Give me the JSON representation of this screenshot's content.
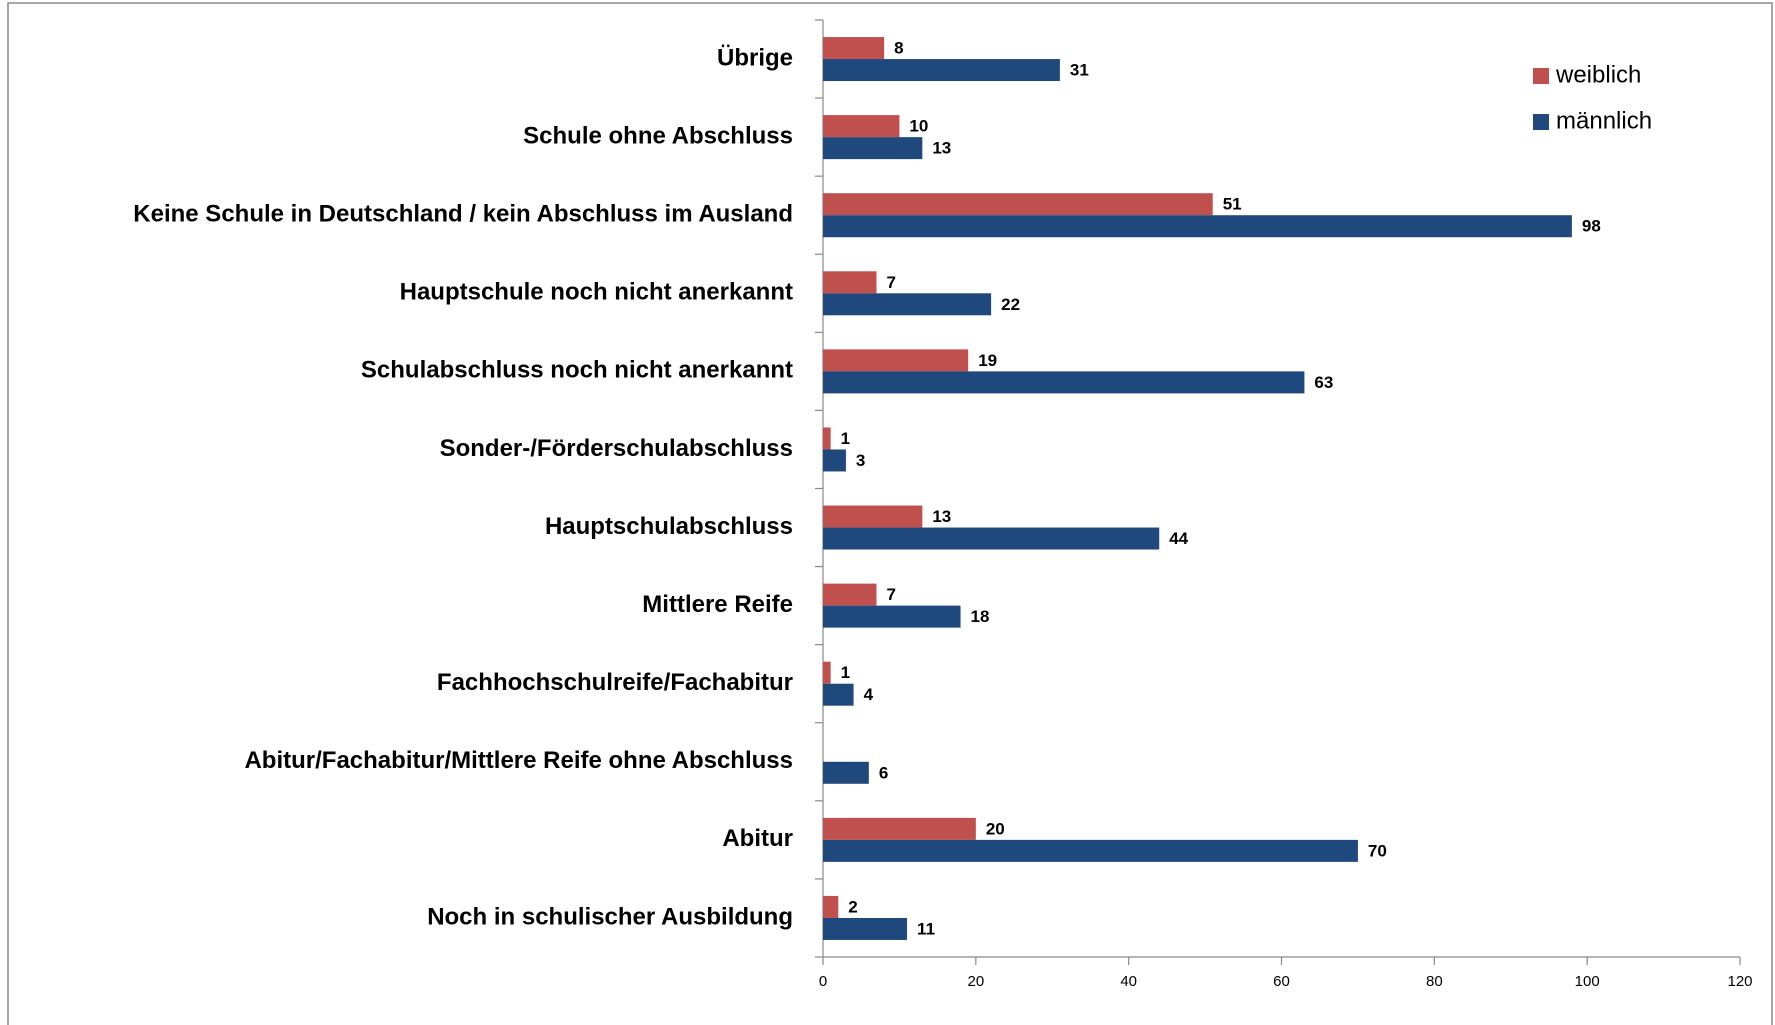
{
  "chart_data": {
    "type": "hbar",
    "categories": [
      "Übrige",
      "Schule ohne Abschluss",
      "Keine Schule in Deutschland / kein Abschluss im Ausland",
      "Hauptschule noch nicht anerkannt",
      "Schulabschluss noch nicht anerkannt",
      "Sonder-/Förderschulabschluss",
      "Hauptschulabschluss",
      "Mittlere Reife",
      "Fachhochschulreife/Fachabitur",
      "Abitur/Fachabitur/Mittlere Reife ohne Abschluss",
      "Abitur",
      "Noch in schulischer Ausbildung"
    ],
    "series": [
      {
        "name": "weiblich",
        "color": "#c0504d",
        "values": [
          8,
          10,
          51,
          7,
          19,
          1,
          13,
          7,
          1,
          null,
          20,
          2
        ]
      },
      {
        "name": "männlich",
        "color": "#1f497d",
        "values": [
          31,
          13,
          98,
          22,
          63,
          3,
          44,
          18,
          4,
          6,
          70,
          11
        ]
      }
    ],
    "xlim": [
      0,
      120
    ],
    "xticks": [
      0,
      20,
      40,
      60,
      80,
      100,
      120
    ],
    "legend": "top-right"
  }
}
